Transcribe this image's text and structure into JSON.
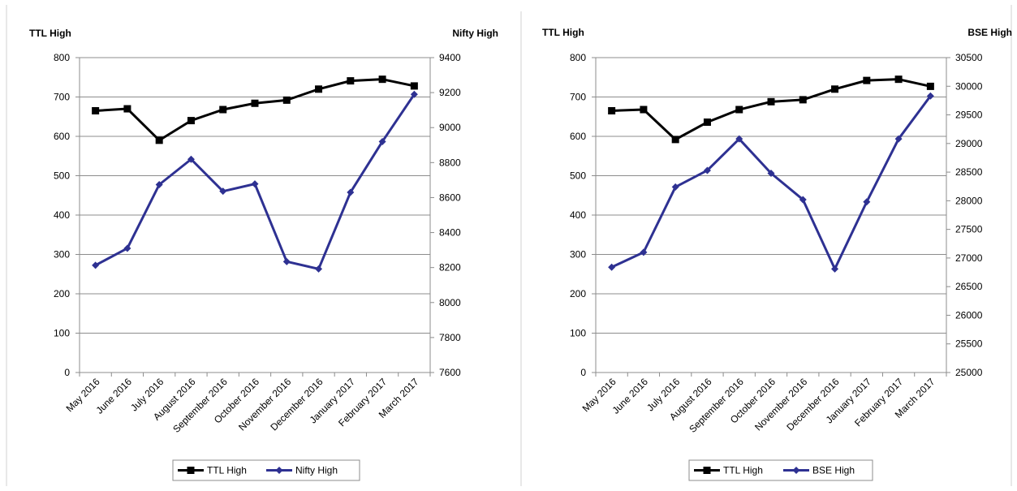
{
  "chart_data": [
    {
      "type": "line",
      "dual_axis": true,
      "categories": [
        "May 2016",
        "June 2016",
        "July 2016",
        "August 2016",
        "September 2016",
        "October 2016",
        "November 2016",
        "December 2016",
        "January 2017",
        "February 2017",
        "March 2017"
      ],
      "ylabel_left": "TTL  High",
      "ylabel_right": "Nifty High",
      "ylim_left": [
        0,
        800
      ],
      "yticks_left": [
        0,
        100,
        200,
        300,
        400,
        500,
        600,
        700,
        800
      ],
      "ylim_right": [
        7600,
        9400
      ],
      "yticks_right": [
        7600,
        7800,
        8000,
        8200,
        8400,
        8600,
        8800,
        9000,
        9200,
        9400
      ],
      "grid": true,
      "legend_position": "bottom",
      "series": [
        {
          "name": "TTL High",
          "axis": "left",
          "color": "#000000",
          "marker": "square",
          "values": [
            665,
            670,
            590,
            640,
            668,
            684,
            692,
            720,
            741,
            745,
            728
          ]
        },
        {
          "name": "Nifty High",
          "axis": "right",
          "color": "#2E3192",
          "marker": "diamond",
          "values": [
            8213,
            8310,
            8674,
            8819,
            8636,
            8678,
            8234,
            8192,
            8630,
            8920,
            9190
          ]
        }
      ]
    },
    {
      "type": "line",
      "dual_axis": true,
      "categories": [
        "May 2016",
        "June 2016",
        "July 2016",
        "August 2016",
        "September 2016",
        "October 2016",
        "November 2016",
        "December 2016",
        "January 2017",
        "February 2017",
        "March 2017"
      ],
      "ylabel_left": "TTL High",
      "ylabel_right": "BSE High",
      "ylim_left": [
        0,
        800
      ],
      "yticks_left": [
        0,
        100,
        200,
        300,
        400,
        500,
        600,
        700,
        800
      ],
      "ylim_right": [
        25000,
        30500
      ],
      "yticks_right": [
        25000,
        25500,
        26000,
        26500,
        27000,
        27500,
        28000,
        28500,
        29000,
        29500,
        30000,
        30500
      ],
      "grid": true,
      "legend_position": "bottom",
      "series": [
        {
          "name": "TTL High",
          "axis": "left",
          "color": "#000000",
          "marker": "square",
          "values": [
            665,
            668,
            592,
            636,
            668,
            688,
            693,
            720,
            742,
            745,
            727
          ]
        },
        {
          "name": "BSE High",
          "axis": "right",
          "color": "#2E3192",
          "marker": "diamond",
          "values": [
            26840,
            27100,
            28240,
            28530,
            29080,
            28480,
            28020,
            26810,
            27980,
            29080,
            29830
          ]
        }
      ]
    }
  ]
}
